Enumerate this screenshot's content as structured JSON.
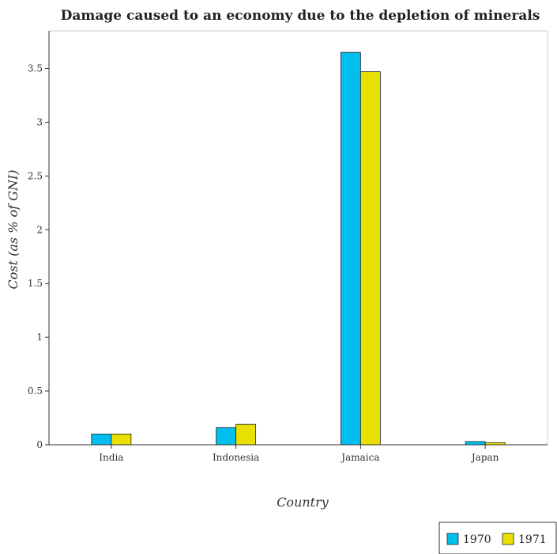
{
  "chart_data": {
    "type": "bar",
    "title": "Damage caused to an economy due to the depletion of minerals",
    "xlabel": "Country",
    "ylabel": "Cost (as % of GNI)",
    "categories": [
      "India",
      "Indonesia",
      "Jamaica",
      "Japan"
    ],
    "series": [
      {
        "name": "1970",
        "color": "#00bfef",
        "values": [
          0.1,
          0.16,
          3.65,
          0.03
        ]
      },
      {
        "name": "1971",
        "color": "#e8e000",
        "values": [
          0.1,
          0.19,
          3.47,
          0.02
        ]
      }
    ],
    "ylim": [
      0,
      3.85
    ],
    "yticks": [
      0,
      0.5,
      1,
      1.5,
      2,
      2.5,
      3,
      3.5
    ],
    "ytick_labels": [
      "0",
      "0.5",
      "1",
      "1.5",
      "2",
      "2.5",
      "3",
      "3.5"
    ],
    "grid": false,
    "legend_position": "bottom-right"
  }
}
